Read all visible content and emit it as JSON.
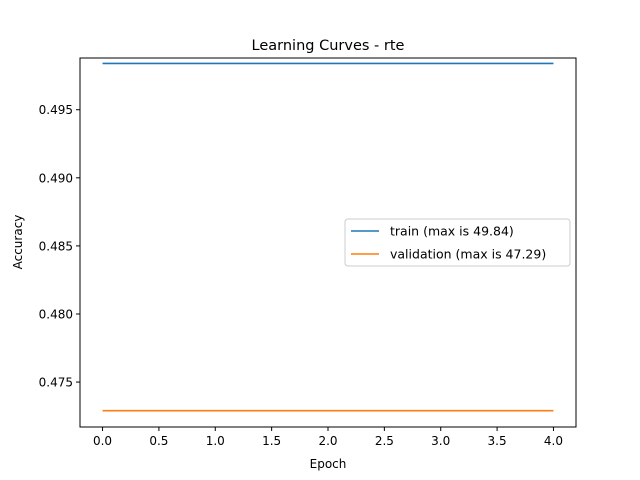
{
  "chart_data": {
    "type": "line",
    "title": "Learning Curves - rte",
    "xlabel": "Epoch",
    "ylabel": "Accuracy",
    "x": [
      0,
      1,
      2,
      3,
      4
    ],
    "xlim": [
      -0.2,
      4.2
    ],
    "ylim": [
      0.4717,
      0.4988
    ],
    "xticks": [
      0.0,
      0.5,
      1.0,
      1.5,
      2.0,
      2.5,
      3.0,
      3.5,
      4.0
    ],
    "xtick_labels": [
      "0.0",
      "0.5",
      "1.0",
      "1.5",
      "2.0",
      "2.5",
      "3.0",
      "3.5",
      "4.0"
    ],
    "yticks": [
      0.475,
      0.48,
      0.485,
      0.49,
      0.495
    ],
    "ytick_labels": [
      "0.475",
      "0.480",
      "0.485",
      "0.490",
      "0.495"
    ],
    "grid": false,
    "legend_position": "center-right",
    "series": [
      {
        "name": "train (max is 49.84)",
        "color": "#1f77b4",
        "values": [
          0.4984,
          0.4984,
          0.4984,
          0.4984,
          0.4984
        ]
      },
      {
        "name": "validation (max is 47.29)",
        "color": "#ff7f0e",
        "values": [
          0.4729,
          0.4729,
          0.4729,
          0.4729,
          0.4729
        ]
      }
    ]
  }
}
